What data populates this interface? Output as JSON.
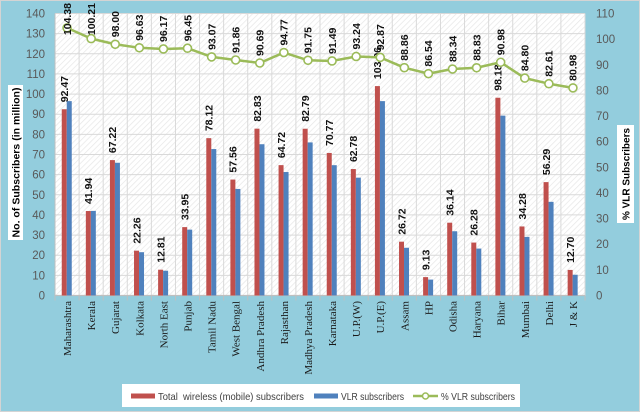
{
  "chart_data": {
    "type": "bar",
    "title": "",
    "categories": [
      "Maharashtra",
      "Kerala",
      "Gujarat",
      "Kolkata",
      "North East",
      "Punjab",
      "Tamil Nadu",
      "West Bengal",
      "Andhra Pradesh",
      "Rajasthan",
      "Madhya Pradesh",
      "Karnataka",
      "U.P.(W)",
      "U.P.(E)",
      "Assam",
      "HP",
      "Odisha",
      "Haryana",
      "Bihar",
      "Mumbai",
      "Delhi",
      "J & K"
    ],
    "series": [
      {
        "name": "Total  wireless (mobile) subscribers",
        "type": "bar",
        "axis": "left",
        "color": "#c0504d",
        "values": [
          92.47,
          41.94,
          67.22,
          22.26,
          12.81,
          33.95,
          78.12,
          57.56,
          82.83,
          64.72,
          82.79,
          70.77,
          62.78,
          103.96,
          26.72,
          9.13,
          36.14,
          26.28,
          98.18,
          34.28,
          56.29,
          12.7
        ],
        "data_labels": [
          "92.47",
          "41.94",
          "67.22",
          "22.26",
          "12.81",
          "33.95",
          "78.12",
          "57.56",
          "82.83",
          "64.72",
          "82.79",
          "70.77",
          "62.78",
          "103.96",
          "26.72",
          "9.13",
          "36.14",
          "26.28",
          "98.18",
          "34.28",
          "56.29",
          "12.70"
        ]
      },
      {
        "name": "VLR subscribers",
        "type": "bar",
        "axis": "left",
        "color": "#4f81bd",
        "values": [
          96.5,
          42.0,
          65.9,
          21.5,
          12.3,
          32.7,
          72.7,
          52.9,
          75.1,
          61.3,
          76.0,
          64.7,
          58.5,
          96.5,
          23.7,
          7.9,
          31.9,
          23.3,
          89.3,
          29.1,
          46.5,
          10.3
        ]
      },
      {
        "name": "% VLR subscribers",
        "type": "line",
        "axis": "right",
        "color": "#9bbb59",
        "values": [
          104.38,
          100.21,
          98.0,
          96.63,
          96.17,
          96.45,
          93.07,
          91.86,
          90.69,
          94.77,
          91.75,
          91.49,
          93.24,
          92.87,
          88.86,
          86.54,
          88.34,
          88.83,
          90.98,
          84.8,
          82.61,
          80.98
        ],
        "data_labels": [
          "104.38",
          "100.21",
          "98.00",
          "96.63",
          "96.17",
          "96.45",
          "93.07",
          "91.86",
          "90.69",
          "94.77",
          "91.75",
          "91.49",
          "93.24",
          "92.87",
          "88.86",
          "86.54",
          "88.34",
          "88.83",
          "90.98",
          "84.80",
          "82.61",
          "80.98"
        ]
      }
    ],
    "xlabel": "",
    "ylabel": "No. of Subscribers (in million)",
    "y2label": "% VLR Subscribers",
    "ylim": [
      0,
      140
    ],
    "y2lim": [
      0,
      110
    ],
    "yticks": [
      0,
      10,
      20,
      30,
      40,
      50,
      60,
      70,
      80,
      90,
      100,
      110,
      120,
      130,
      140
    ],
    "y2ticks": [
      0,
      10,
      20,
      30,
      40,
      50,
      60,
      70,
      80,
      90,
      100,
      110
    ],
    "grid": true,
    "legend_position": "bottom"
  }
}
